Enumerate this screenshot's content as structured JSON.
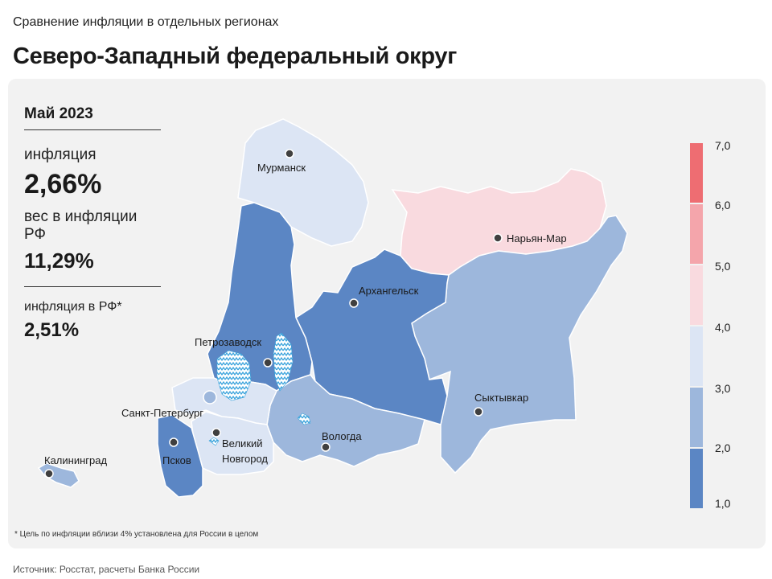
{
  "header": {
    "subtitle": "Сравнение инфляции в отдельных регионах",
    "title": "Северо-Западный федеральный округ"
  },
  "info": {
    "period": "Май 2023",
    "inflation_label": "инфляция",
    "inflation_value": "2,66%",
    "weight_label": "вес в инфляции РФ",
    "weight_value": "11,29%",
    "rf_label": "инфляция в РФ*",
    "rf_value": "2,51%"
  },
  "legend": {
    "ticks": [
      "7,0",
      "6,0",
      "5,0",
      "4,0",
      "3,0",
      "2,0",
      "1,0"
    ],
    "bins": [
      {
        "from": 1.0,
        "to": 2.0,
        "color": "#5b86c4"
      },
      {
        "from": 2.0,
        "to": 3.0,
        "color": "#9db7dc"
      },
      {
        "from": 3.0,
        "to": 4.0,
        "color": "#dce5f4"
      },
      {
        "from": 4.0,
        "to": 5.0,
        "color": "#f9dadf"
      },
      {
        "from": 5.0,
        "to": 6.0,
        "color": "#f4a5ab"
      },
      {
        "from": 6.0,
        "to": 7.0,
        "color": "#ee6d72"
      }
    ]
  },
  "regions": [
    {
      "city": "Мурманск",
      "color": "#dce5f4"
    },
    {
      "city": "Нарьян-Мар",
      "color": "#f9dadf"
    },
    {
      "city": "Архангельск",
      "color": "#5b86c4"
    },
    {
      "city": "Петрозаводск",
      "color": "#5b86c4"
    },
    {
      "city": "Сыктывкар",
      "color": "#9db7dc"
    },
    {
      "city": "Вологда",
      "color": "#9db7dc"
    },
    {
      "city": "Санкт-Петербург",
      "color": "#9db7dc"
    },
    {
      "city": "Великий",
      "color": "#dce5f4"
    },
    {
      "city": "Новгород",
      "color": "#dce5f4"
    },
    {
      "city": "Псков",
      "color": "#5b86c4"
    },
    {
      "city": "Калининград",
      "color": "#9db7dc"
    }
  ],
  "footnote": "* Цель по инфляции вблизи 4% установлена для России в целом",
  "source": "Источник: Росстат, расчеты Банка России"
}
